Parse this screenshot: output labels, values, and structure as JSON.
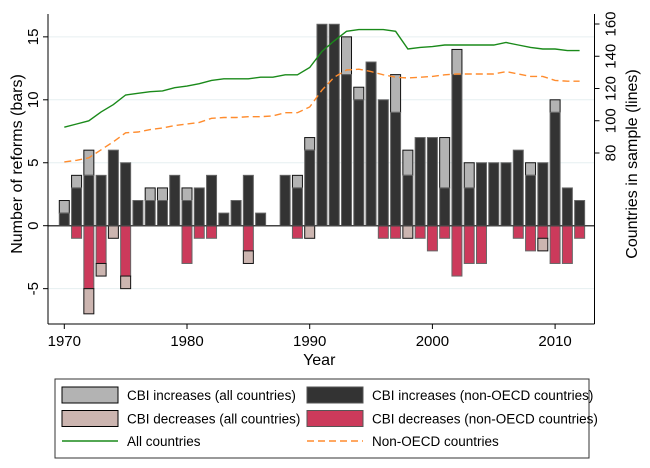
{
  "chart_data": {
    "type": "bar",
    "title": "",
    "xlabel": "Year",
    "ylabel": "Number of reforms (bars)",
    "y2label": "Countries in sample (lines)",
    "xlim": [
      1969,
      2013.5
    ],
    "ylim": [
      -7.8,
      16.8
    ],
    "y2lim": [
      -27,
      166
    ],
    "xticks": [
      1970,
      1980,
      1990,
      2000,
      2010
    ],
    "yticks": [
      -5,
      0,
      5,
      10,
      15
    ],
    "y2ticks": [
      80,
      100,
      120,
      140,
      160
    ],
    "grid": true,
    "legend_position": "bottom",
    "x": [
      1970,
      1971,
      1972,
      1973,
      1974,
      1975,
      1976,
      1977,
      1978,
      1979,
      1980,
      1981,
      1982,
      1983,
      1984,
      1985,
      1986,
      1987,
      1988,
      1989,
      1990,
      1991,
      1992,
      1993,
      1994,
      1995,
      1996,
      1997,
      1998,
      1999,
      2000,
      2001,
      2002,
      2003,
      2004,
      2005,
      2006,
      2007,
      2008,
      2009,
      2010,
      2011,
      2012
    ],
    "series": [
      {
        "name": "CBI increases (all countries)",
        "kind": "bar",
        "axis": "left",
        "color": "#b3b3b3",
        "values": [
          2,
          4,
          6,
          4,
          6,
          5,
          2,
          3,
          3,
          4,
          3,
          3,
          4,
          1,
          2,
          4,
          1,
          0,
          4,
          4,
          7,
          16,
          16,
          15,
          11,
          13,
          10,
          12,
          6,
          7,
          7,
          7,
          14,
          5,
          5,
          5,
          5,
          6,
          5,
          5,
          10,
          3,
          2
        ]
      },
      {
        "name": "CBI increases (non-OECD countries)",
        "kind": "bar",
        "axis": "left",
        "color": "#333333",
        "values": [
          1,
          3,
          4,
          4,
          6,
          5,
          2,
          2,
          2,
          4,
          2,
          3,
          4,
          1,
          2,
          4,
          1,
          0,
          4,
          3,
          6,
          16,
          16,
          12,
          10,
          13,
          10,
          9,
          4,
          7,
          7,
          3,
          12,
          3,
          5,
          5,
          5,
          6,
          4,
          5,
          9,
          3,
          2
        ]
      },
      {
        "name": "CBI decreases (all countries)",
        "kind": "bar",
        "axis": "left",
        "color": "#ccb5b0",
        "values": [
          0,
          -1,
          -7,
          -4,
          -1,
          -5,
          0,
          0,
          0,
          0,
          -3,
          -1,
          -1,
          0,
          0,
          -3,
          0,
          0,
          0,
          -1,
          -1,
          0,
          0,
          0,
          0,
          0,
          -1,
          -1,
          -1,
          -1,
          -2,
          -1,
          -4,
          -3,
          -3,
          0,
          0,
          -1,
          -2,
          -2,
          -3,
          -3,
          -1
        ]
      },
      {
        "name": "CBI decreases (non-OECD countries)",
        "kind": "bar",
        "axis": "left",
        "color": "#cc3a5b",
        "values": [
          0,
          -1,
          -5,
          -3,
          0,
          -4,
          0,
          0,
          0,
          0,
          -3,
          -1,
          -1,
          0,
          0,
          -2,
          0,
          0,
          0,
          -1,
          0,
          0,
          0,
          0,
          0,
          0,
          -1,
          -1,
          0,
          -1,
          -2,
          -1,
          -4,
          -3,
          -3,
          0,
          0,
          -1,
          -2,
          -1,
          -3,
          -3,
          -1
        ]
      },
      {
        "name": "All countries",
        "kind": "line",
        "axis": "right",
        "color": "#1a8a1a",
        "dash": "solid",
        "values": [
          96,
          98,
          100,
          105.5,
          110,
          116,
          117,
          118,
          118.5,
          120.5,
          121.5,
          123,
          125,
          126,
          126,
          126,
          127,
          127,
          128.5,
          128.5,
          133,
          143,
          149.5,
          155.5,
          156.5,
          156.5,
          156.5,
          155.5,
          144.5,
          145.5,
          146,
          147,
          147,
          147,
          147,
          147,
          148.5,
          147,
          145.5,
          144.5,
          144.5,
          143.5,
          143.5
        ]
      },
      {
        "name": "Non-OECD countries",
        "kind": "line",
        "axis": "right",
        "color": "#ff8c2e",
        "dash": "dashed",
        "values": [
          74.5,
          75.5,
          77,
          82,
          87,
          92.5,
          93,
          94.5,
          95.5,
          97,
          98,
          99,
          101.5,
          102,
          102,
          102.5,
          102.5,
          103,
          105,
          105,
          108.5,
          119,
          127,
          131.5,
          132,
          130.5,
          128.5,
          127,
          126.5,
          127,
          127.5,
          128.5,
          129,
          129,
          129,
          129,
          130.5,
          129,
          127.5,
          127.5,
          125,
          124.5,
          124.5
        ]
      }
    ],
    "legend": [
      {
        "label": "CBI increases (all countries)",
        "swatch": "box",
        "color": "#b3b3b3",
        "outline": "#000000"
      },
      {
        "label": "CBI increases (non-OECD countries)",
        "swatch": "box",
        "color": "#333333",
        "outline": "#555555"
      },
      {
        "label": "CBI decreases (all countries)",
        "swatch": "box",
        "color": "#ccb5b0",
        "outline": "#000000"
      },
      {
        "label": "CBI decreases (non-OECD countries)",
        "swatch": "box",
        "color": "#cc3a5b",
        "outline": "#555555"
      },
      {
        "label": "All countries",
        "swatch": "line",
        "color": "#1a8a1a",
        "dash": "solid"
      },
      {
        "label": "Non-OECD countries",
        "swatch": "line",
        "color": "#ff8c2e",
        "dash": "dashed"
      }
    ]
  }
}
